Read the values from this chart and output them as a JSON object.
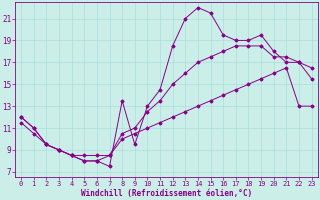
{
  "title": "",
  "xlabel": "Windchill (Refroidissement éolien,°C)",
  "ylabel": "",
  "background_color": "#cceee8",
  "line_color": "#880088",
  "xlim": [
    -0.5,
    23.5
  ],
  "ylim": [
    6.5,
    22.5
  ],
  "xticks": [
    0,
    1,
    2,
    3,
    4,
    5,
    6,
    7,
    8,
    9,
    10,
    11,
    12,
    13,
    14,
    15,
    16,
    17,
    18,
    19,
    20,
    21,
    22,
    23
  ],
  "yticks": [
    7,
    9,
    11,
    13,
    15,
    17,
    19,
    21
  ],
  "series1_x": [
    0,
    1,
    2,
    3,
    4,
    5,
    6,
    7,
    8,
    9,
    10,
    11,
    12,
    13,
    14,
    15,
    16,
    17,
    18,
    19,
    20,
    21,
    22,
    23
  ],
  "series1_y": [
    12.0,
    11.0,
    9.5,
    9.0,
    8.5,
    8.0,
    8.0,
    7.5,
    13.5,
    9.5,
    13.0,
    14.5,
    18.5,
    21.0,
    22.0,
    21.5,
    19.5,
    19.0,
    19.0,
    19.5,
    18.0,
    17.0,
    17.0,
    15.5
  ],
  "series2_x": [
    0,
    1,
    2,
    3,
    4,
    5,
    6,
    7,
    8,
    9,
    10,
    11,
    12,
    13,
    14,
    15,
    16,
    17,
    18,
    19,
    20,
    21,
    22,
    23
  ],
  "series2_y": [
    12.0,
    11.0,
    9.5,
    9.0,
    8.5,
    8.0,
    8.0,
    8.5,
    10.5,
    11.0,
    12.5,
    13.5,
    15.0,
    16.0,
    17.0,
    17.5,
    18.0,
    18.5,
    18.5,
    18.5,
    17.5,
    17.5,
    17.0,
    16.5
  ],
  "series3_x": [
    0,
    1,
    2,
    3,
    4,
    5,
    6,
    7,
    8,
    9,
    10,
    11,
    12,
    13,
    14,
    15,
    16,
    17,
    18,
    19,
    20,
    21,
    22,
    23
  ],
  "series3_y": [
    11.5,
    10.5,
    9.5,
    9.0,
    8.5,
    8.5,
    8.5,
    8.5,
    10.0,
    10.5,
    11.0,
    11.5,
    12.0,
    12.5,
    13.0,
    13.5,
    14.0,
    14.5,
    15.0,
    15.5,
    16.0,
    16.5,
    13.0,
    13.0
  ],
  "grid_color": "#aadddd",
  "tick_fontsize": 5.0,
  "xlabel_fontsize": 5.5
}
